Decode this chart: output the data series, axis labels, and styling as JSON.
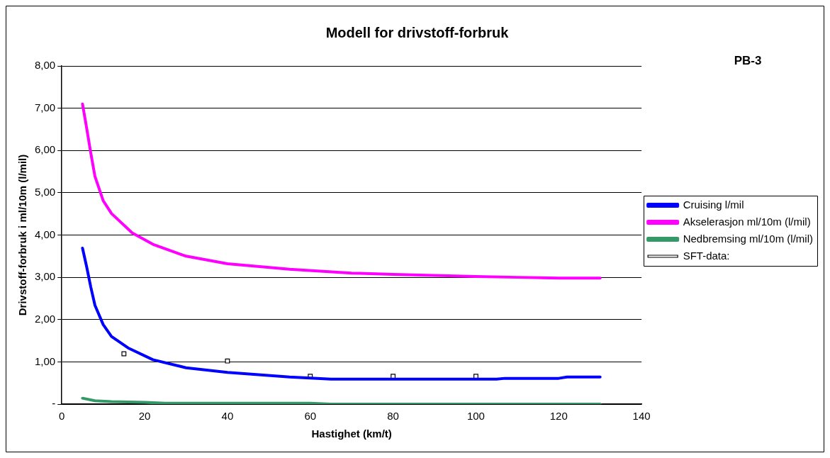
{
  "chart_data": {
    "type": "line",
    "title": "Modell for drivstoff-forbruk",
    "xlabel": "Hastighet (km/t)",
    "ylabel": "Drivstoff-forbruk i ml/10m (l/mil)",
    "annotations": [
      "PB-3"
    ],
    "xlim": [
      0,
      140
    ],
    "xticks": [
      0,
      20,
      40,
      60,
      80,
      100,
      120,
      140
    ],
    "ylim": [
      0,
      8
    ],
    "yticks": [
      {
        "value": 0,
        "label": "-"
      },
      {
        "value": 1,
        "label": "1,00"
      },
      {
        "value": 2,
        "label": "2,00"
      },
      {
        "value": 3,
        "label": "3,00"
      },
      {
        "value": 4,
        "label": "4,00"
      },
      {
        "value": 5,
        "label": "5,00"
      },
      {
        "value": 6,
        "label": "6,00"
      },
      {
        "value": 7,
        "label": "7,00"
      },
      {
        "value": 8,
        "label": "8,00"
      }
    ],
    "grid": "y",
    "legend": "right",
    "series": [
      {
        "name": "Cruising l/mil",
        "color": "#0000ff",
        "marker": "none",
        "x": [
          5,
          6,
          7,
          8,
          10,
          12,
          16,
          22,
          30,
          40,
          55,
          65,
          80,
          100,
          105,
          107,
          120,
          122,
          130
        ],
        "values": [
          3.69,
          3.25,
          2.77,
          2.34,
          1.88,
          1.6,
          1.33,
          1.05,
          0.86,
          0.75,
          0.64,
          0.59,
          0.59,
          0.59,
          0.59,
          0.61,
          0.61,
          0.64,
          0.64
        ]
      },
      {
        "name": "Akselerasjon ml/10m (l/mil)",
        "color": "#ff00ff",
        "marker": "none",
        "x": [
          5,
          6,
          7,
          8,
          10,
          12,
          17,
          22,
          30,
          40,
          55,
          70,
          80,
          100,
          110,
          120,
          130
        ],
        "values": [
          7.1,
          6.53,
          5.94,
          5.39,
          4.81,
          4.51,
          4.05,
          3.78,
          3.5,
          3.32,
          3.19,
          3.1,
          3.07,
          3.02,
          3.0,
          2.98,
          2.98
        ]
      },
      {
        "name": "Nedbremsing ml/10m (l/mil)",
        "color": "#339966",
        "marker": "none",
        "x": [
          5,
          8,
          12,
          20,
          25,
          60,
          65,
          130
        ],
        "values": [
          0.14,
          0.08,
          0.06,
          0.04,
          0.02,
          0.02,
          0.0,
          0.0
        ]
      },
      {
        "name": "SFT-data:",
        "type": "scatter",
        "color": "#000000",
        "marker": "square",
        "x": [
          15,
          40,
          60,
          80,
          100
        ],
        "values": [
          1.19,
          1.02,
          0.66,
          0.66,
          0.66
        ]
      }
    ]
  }
}
